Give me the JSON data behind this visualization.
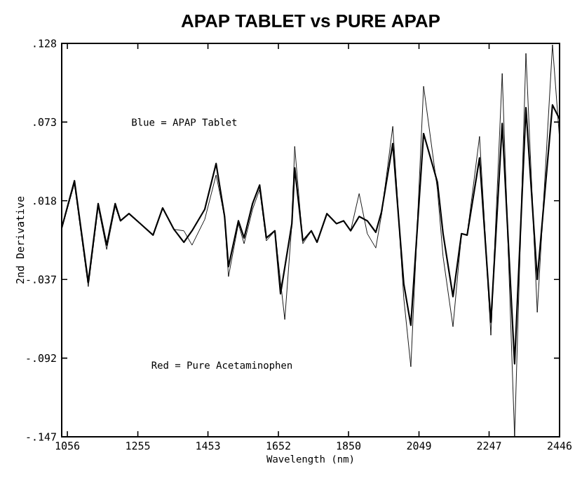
{
  "chart_data": {
    "type": "line",
    "title": "APAP TABLET vs PURE APAP",
    "xlabel": "Wavelength (nm)",
    "ylabel": "2nd Derivative",
    "annotations": [
      "Blue = APAP Tablet",
      "Red = Pure Acetaminophen"
    ],
    "xlim": [
      1040,
      2446
    ],
    "ylim": [
      -0.147,
      0.128
    ],
    "xticks": [
      1056,
      1255,
      1453,
      1652,
      1850,
      2049,
      2247,
      2446
    ],
    "yticks": [
      {
        "value": -0.147,
        "label": "-.147"
      },
      {
        "value": -0.092,
        "label": "-.092"
      },
      {
        "value": -0.037,
        "label": "-.037"
      },
      {
        "value": 0.018,
        "label": ".018"
      },
      {
        "value": 0.073,
        "label": ".073"
      },
      {
        "value": 0.128,
        "label": ".128"
      }
    ],
    "marker": "none",
    "line_style": "solid",
    "series": [
      {
        "color": "#000000",
        "x": [
          1040,
          1076,
          1115,
          1143,
          1167,
          1191,
          1206,
          1230,
          1262,
          1298,
          1325,
          1357,
          1385,
          1408,
          1444,
          1476,
          1500,
          1511,
          1539,
          1555,
          1579,
          1599,
          1618,
          1642,
          1658,
          1690,
          1698,
          1721,
          1745,
          1761,
          1789,
          1816,
          1836,
          1856,
          1880,
          1903,
          1927,
          1943,
          1975,
          2006,
          2026,
          2062,
          2101,
          2117,
          2145,
          2169,
          2185,
          2220,
          2252,
          2284,
          2319,
          2351,
          2383,
          2426,
          2446
        ],
        "values": [
          -0.001,
          0.032,
          -0.039,
          0.016,
          -0.013,
          0.016,
          0.004,
          0.009,
          0.002,
          -0.006,
          0.013,
          -0.002,
          -0.011,
          -0.003,
          0.012,
          0.044,
          0.007,
          -0.028,
          0.004,
          -0.008,
          0.016,
          0.029,
          -0.008,
          -0.003,
          -0.047,
          0.002,
          0.041,
          -0.01,
          -0.003,
          -0.011,
          0.009,
          0.002,
          0.004,
          -0.003,
          0.007,
          0.004,
          -0.004,
          0.01,
          0.058,
          -0.04,
          -0.069,
          0.065,
          0.031,
          -0.005,
          -0.049,
          -0.005,
          -0.006,
          0.048,
          -0.067,
          0.072,
          -0.096,
          0.083,
          -0.037,
          0.085,
          0.075
        ]
      },
      {
        "color": "#000000",
        "x": [
          1040,
          1076,
          1115,
          1143,
          1167,
          1191,
          1206,
          1230,
          1262,
          1298,
          1325,
          1357,
          1385,
          1408,
          1444,
          1476,
          1500,
          1511,
          1539,
          1555,
          1579,
          1599,
          1618,
          1642,
          1670,
          1690,
          1698,
          1721,
          1745,
          1761,
          1789,
          1816,
          1836,
          1856,
          1880,
          1903,
          1927,
          1943,
          1975,
          2006,
          2026,
          2062,
          2101,
          2117,
          2145,
          2169,
          2185,
          2220,
          2252,
          2284,
          2319,
          2351,
          2383,
          2426,
          2446
        ],
        "values": [
          -0.001,
          0.03,
          -0.042,
          0.014,
          -0.016,
          0.014,
          0.004,
          0.009,
          0.002,
          -0.006,
          0.013,
          -0.002,
          -0.003,
          -0.013,
          0.005,
          0.036,
          0.007,
          -0.035,
          0.002,
          -0.012,
          0.012,
          0.026,
          -0.01,
          -0.003,
          -0.065,
          0.002,
          0.056,
          -0.012,
          -0.003,
          -0.011,
          0.009,
          0.002,
          0.004,
          -0.003,
          0.023,
          -0.005,
          -0.015,
          0.008,
          0.07,
          -0.05,
          -0.098,
          0.098,
          0.026,
          -0.021,
          -0.07,
          -0.005,
          -0.006,
          0.063,
          -0.076,
          0.107,
          -0.147,
          0.121,
          -0.06,
          0.127,
          0.061
        ]
      }
    ]
  }
}
